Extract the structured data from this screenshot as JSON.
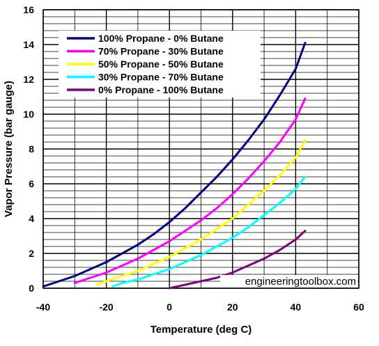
{
  "chart_data": {
    "type": "line",
    "title": "",
    "xlabel": "Temperature (deg C)",
    "ylabel": "Vapor Pressure (bar gauge)",
    "xlim": [
      -40,
      60
    ],
    "ylim": [
      0,
      16
    ],
    "xticks": [
      -40,
      -20,
      0,
      20,
      40,
      60
    ],
    "yticks": [
      0,
      2,
      4,
      6,
      8,
      10,
      12,
      14,
      16
    ],
    "grid": "horizontal minor lines every 0.4 bar, vertical lines every 10 deg C",
    "legend_position": "top-left",
    "watermark": "engineeringtoolbox.com",
    "series": [
      {
        "name": "100% Propane - 0% Butane",
        "color": "#000080",
        "x": [
          -40,
          -35,
          -30,
          -25,
          -20,
          -15,
          -10,
          -5,
          0,
          5,
          10,
          15,
          20,
          25,
          30,
          35,
          40,
          43
        ],
        "y": [
          0.1,
          0.4,
          0.7,
          1.1,
          1.5,
          2.0,
          2.5,
          3.1,
          3.8,
          4.6,
          5.5,
          6.4,
          7.4,
          8.5,
          9.7,
          11.1,
          12.6,
          14.1
        ]
      },
      {
        "name": "70% Propane - 30% Butane",
        "color": "#ff00ff",
        "x": [
          -30,
          -25,
          -20,
          -15,
          -10,
          -5,
          0,
          5,
          10,
          15,
          20,
          25,
          30,
          35,
          40,
          43
        ],
        "y": [
          0.3,
          0.6,
          0.9,
          1.3,
          1.7,
          2.2,
          2.7,
          3.3,
          3.9,
          4.6,
          5.4,
          6.3,
          7.3,
          8.4,
          9.7,
          10.9
        ]
      },
      {
        "name": "50% Propane - 50% Butane",
        "color": "#ffff00",
        "x": [
          -23,
          -20,
          -15,
          -10,
          -5,
          0,
          5,
          10,
          15,
          20,
          25,
          30,
          35,
          40,
          43
        ],
        "y": [
          0.2,
          0.4,
          0.7,
          1.0,
          1.4,
          1.8,
          2.3,
          2.8,
          3.4,
          4.0,
          4.8,
          5.6,
          6.5,
          7.5,
          8.5
        ]
      },
      {
        "name": "30% Propane - 70% Butane",
        "color": "#00ffff",
        "x": [
          -18,
          -15,
          -10,
          -5,
          0,
          5,
          10,
          15,
          20,
          25,
          30,
          35,
          40,
          43
        ],
        "y": [
          0.1,
          0.3,
          0.5,
          0.8,
          1.1,
          1.5,
          1.9,
          2.4,
          2.9,
          3.5,
          4.2,
          4.9,
          5.7,
          6.4
        ]
      },
      {
        "name": "0% Propane - 100% Butane",
        "color": "#800080",
        "x": [
          0,
          5,
          10,
          15,
          20,
          25,
          30,
          35,
          40,
          43
        ],
        "y": [
          0.0,
          0.2,
          0.4,
          0.6,
          0.9,
          1.3,
          1.7,
          2.2,
          2.8,
          3.3
        ]
      }
    ]
  }
}
